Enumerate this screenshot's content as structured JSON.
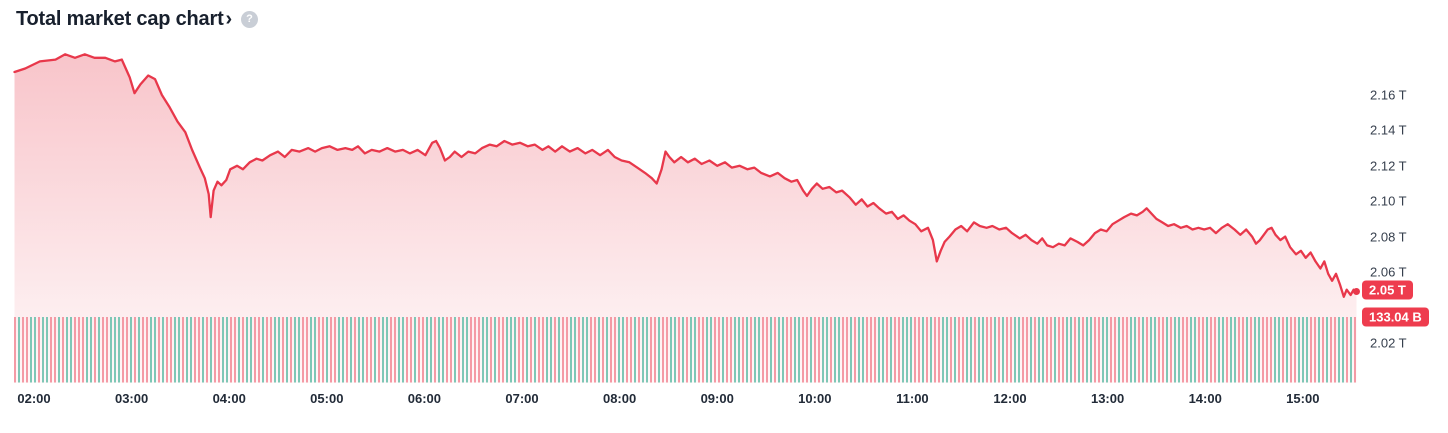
{
  "header": {
    "title": "Total market cap chart",
    "chevron": "›",
    "help_icon": "?"
  },
  "chart_data": {
    "type": "area",
    "title": "Total market cap chart",
    "grid": false,
    "legend": "none",
    "y_labels_side": "right",
    "x_axis": {
      "ticks": [
        {
          "hour": 2,
          "label": "02:00"
        },
        {
          "hour": 3,
          "label": "03:00"
        },
        {
          "hour": 4,
          "label": "04:00"
        },
        {
          "hour": 5,
          "label": "05:00"
        },
        {
          "hour": 6,
          "label": "06:00"
        },
        {
          "hour": 7,
          "label": "07:00"
        },
        {
          "hour": 8,
          "label": "08:00"
        },
        {
          "hour": 9,
          "label": "09:00"
        },
        {
          "hour": 10,
          "label": "10:00"
        },
        {
          "hour": 11,
          "label": "11:00"
        },
        {
          "hour": 12,
          "label": "12:00"
        },
        {
          "hour": 13,
          "label": "13:00"
        },
        {
          "hour": 14,
          "label": "14:00"
        },
        {
          "hour": 15,
          "label": "15:00"
        }
      ],
      "hours_range": [
        1.795,
        15.56
      ]
    },
    "y_axis": {
      "unit": "T",
      "ticks": [
        {
          "value": 2.16,
          "label": "2.16 T"
        },
        {
          "value": 2.14,
          "label": "2.14 T"
        },
        {
          "value": 2.12,
          "label": "2.12 T"
        },
        {
          "value": 2.1,
          "label": "2.10 T"
        },
        {
          "value": 2.08,
          "label": "2.08 T"
        },
        {
          "value": 2.06,
          "label": "2.06 T"
        },
        {
          "value": 2.02,
          "label": "2.02 T"
        }
      ],
      "view_range": [
        1.997,
        2.188
      ]
    },
    "current": {
      "market_cap_label": "2.05 T",
      "market_cap_value": 2.05,
      "volume_label": "133.04 B",
      "volume_value_billions": 133.04
    },
    "series": [
      {
        "name": "total_market_cap_trillions_usd",
        "points": [
          [
            1.8,
            2.173
          ],
          [
            1.91,
            2.175
          ],
          [
            2.06,
            2.179
          ],
          [
            2.22,
            2.18
          ],
          [
            2.32,
            2.183
          ],
          [
            2.42,
            2.181
          ],
          [
            2.52,
            2.183
          ],
          [
            2.62,
            2.181
          ],
          [
            2.73,
            2.181
          ],
          [
            2.83,
            2.179
          ],
          [
            2.9,
            2.18
          ],
          [
            2.98,
            2.17
          ],
          [
            3.03,
            2.161
          ],
          [
            3.09,
            2.166
          ],
          [
            3.17,
            2.171
          ],
          [
            3.24,
            2.169
          ],
          [
            3.31,
            2.16
          ],
          [
            3.39,
            2.153
          ],
          [
            3.47,
            2.145
          ],
          [
            3.55,
            2.139
          ],
          [
            3.62,
            2.129
          ],
          [
            3.7,
            2.119
          ],
          [
            3.75,
            2.113
          ],
          [
            3.79,
            2.104
          ],
          [
            3.81,
            2.091
          ],
          [
            3.84,
            2.106
          ],
          [
            3.88,
            2.111
          ],
          [
            3.92,
            2.109
          ],
          [
            3.97,
            2.112
          ],
          [
            4.01,
            2.118
          ],
          [
            4.08,
            2.12
          ],
          [
            4.14,
            2.118
          ],
          [
            4.21,
            2.122
          ],
          [
            4.28,
            2.124
          ],
          [
            4.34,
            2.123
          ],
          [
            4.42,
            2.126
          ],
          [
            4.5,
            2.128
          ],
          [
            4.57,
            2.125
          ],
          [
            4.64,
            2.129
          ],
          [
            4.72,
            2.128
          ],
          [
            4.81,
            2.13
          ],
          [
            4.88,
            2.128
          ],
          [
            4.95,
            2.13
          ],
          [
            5.03,
            2.131
          ],
          [
            5.11,
            2.129
          ],
          [
            5.19,
            2.13
          ],
          [
            5.26,
            2.129
          ],
          [
            5.32,
            2.131
          ],
          [
            5.39,
            2.127
          ],
          [
            5.46,
            2.129
          ],
          [
            5.54,
            2.128
          ],
          [
            5.62,
            2.13
          ],
          [
            5.7,
            2.128
          ],
          [
            5.78,
            2.129
          ],
          [
            5.85,
            2.127
          ],
          [
            5.93,
            2.129
          ],
          [
            6.01,
            2.126
          ],
          [
            6.08,
            2.133
          ],
          [
            6.12,
            2.134
          ],
          [
            6.16,
            2.13
          ],
          [
            6.21,
            2.123
          ],
          [
            6.26,
            2.125
          ],
          [
            6.31,
            2.128
          ],
          [
            6.38,
            2.125
          ],
          [
            6.45,
            2.128
          ],
          [
            6.52,
            2.127
          ],
          [
            6.59,
            2.13
          ],
          [
            6.67,
            2.132
          ],
          [
            6.74,
            2.131
          ],
          [
            6.82,
            2.134
          ],
          [
            6.9,
            2.132
          ],
          [
            6.98,
            2.133
          ],
          [
            7.06,
            2.131
          ],
          [
            7.13,
            2.132
          ],
          [
            7.21,
            2.129
          ],
          [
            7.27,
            2.131
          ],
          [
            7.34,
            2.128
          ],
          [
            7.41,
            2.131
          ],
          [
            7.49,
            2.128
          ],
          [
            7.57,
            2.13
          ],
          [
            7.65,
            2.127
          ],
          [
            7.72,
            2.129
          ],
          [
            7.8,
            2.126
          ],
          [
            7.88,
            2.129
          ],
          [
            7.95,
            2.125
          ],
          [
            8.02,
            2.123
          ],
          [
            8.1,
            2.122
          ],
          [
            8.18,
            2.119
          ],
          [
            8.26,
            2.116
          ],
          [
            8.33,
            2.113
          ],
          [
            8.38,
            2.11
          ],
          [
            8.43,
            2.118
          ],
          [
            8.47,
            2.128
          ],
          [
            8.51,
            2.125
          ],
          [
            8.56,
            2.122
          ],
          [
            8.63,
            2.125
          ],
          [
            8.7,
            2.122
          ],
          [
            8.77,
            2.124
          ],
          [
            8.84,
            2.121
          ],
          [
            8.92,
            2.123
          ],
          [
            9.0,
            2.12
          ],
          [
            9.08,
            2.122
          ],
          [
            9.15,
            2.119
          ],
          [
            9.23,
            2.12
          ],
          [
            9.31,
            2.118
          ],
          [
            9.38,
            2.119
          ],
          [
            9.45,
            2.116
          ],
          [
            9.54,
            2.114
          ],
          [
            9.62,
            2.116
          ],
          [
            9.69,
            2.113
          ],
          [
            9.76,
            2.111
          ],
          [
            9.82,
            2.112
          ],
          [
            9.88,
            2.106
          ],
          [
            9.92,
            2.103
          ],
          [
            9.97,
            2.107
          ],
          [
            10.02,
            2.11
          ],
          [
            10.08,
            2.107
          ],
          [
            10.15,
            2.108
          ],
          [
            10.22,
            2.105
          ],
          [
            10.28,
            2.106
          ],
          [
            10.36,
            2.102
          ],
          [
            10.42,
            2.098
          ],
          [
            10.48,
            2.101
          ],
          [
            10.54,
            2.097
          ],
          [
            10.6,
            2.099
          ],
          [
            10.66,
            2.096
          ],
          [
            10.73,
            2.093
          ],
          [
            10.79,
            2.094
          ],
          [
            10.85,
            2.09
          ],
          [
            10.91,
            2.092
          ],
          [
            10.97,
            2.089
          ],
          [
            11.03,
            2.087
          ],
          [
            11.09,
            2.083
          ],
          [
            11.16,
            2.085
          ],
          [
            11.21,
            2.078
          ],
          [
            11.25,
            2.066
          ],
          [
            11.29,
            2.072
          ],
          [
            11.33,
            2.077
          ],
          [
            11.38,
            2.08
          ],
          [
            11.44,
            2.084
          ],
          [
            11.5,
            2.086
          ],
          [
            11.56,
            2.083
          ],
          [
            11.63,
            2.088
          ],
          [
            11.69,
            2.086
          ],
          [
            11.76,
            2.085
          ],
          [
            11.82,
            2.086
          ],
          [
            11.89,
            2.084
          ],
          [
            11.96,
            2.085
          ],
          [
            12.02,
            2.082
          ],
          [
            12.1,
            2.079
          ],
          [
            12.16,
            2.081
          ],
          [
            12.22,
            2.078
          ],
          [
            12.28,
            2.076
          ],
          [
            12.33,
            2.079
          ],
          [
            12.38,
            2.075
          ],
          [
            12.44,
            2.074
          ],
          [
            12.5,
            2.076
          ],
          [
            12.56,
            2.075
          ],
          [
            12.62,
            2.079
          ],
          [
            12.69,
            2.077
          ],
          [
            12.75,
            2.075
          ],
          [
            12.81,
            2.078
          ],
          [
            12.87,
            2.082
          ],
          [
            12.93,
            2.084
          ],
          [
            12.99,
            2.083
          ],
          [
            13.05,
            2.087
          ],
          [
            13.11,
            2.089
          ],
          [
            13.17,
            2.091
          ],
          [
            13.24,
            2.093
          ],
          [
            13.3,
            2.092
          ],
          [
            13.36,
            2.094
          ],
          [
            13.4,
            2.096
          ],
          [
            13.45,
            2.093
          ],
          [
            13.5,
            2.09
          ],
          [
            13.56,
            2.088
          ],
          [
            13.62,
            2.086
          ],
          [
            13.68,
            2.087
          ],
          [
            13.75,
            2.085
          ],
          [
            13.81,
            2.086
          ],
          [
            13.87,
            2.084
          ],
          [
            13.93,
            2.085
          ],
          [
            13.99,
            2.084
          ],
          [
            14.05,
            2.085
          ],
          [
            14.11,
            2.082
          ],
          [
            14.17,
            2.085
          ],
          [
            14.23,
            2.087
          ],
          [
            14.3,
            2.084
          ],
          [
            14.36,
            2.081
          ],
          [
            14.42,
            2.084
          ],
          [
            14.48,
            2.08
          ],
          [
            14.52,
            2.076
          ],
          [
            14.56,
            2.078
          ],
          [
            14.6,
            2.081
          ],
          [
            14.64,
            2.084
          ],
          [
            14.68,
            2.085
          ],
          [
            14.72,
            2.081
          ],
          [
            14.77,
            2.078
          ],
          [
            14.82,
            2.08
          ],
          [
            14.87,
            2.074
          ],
          [
            14.93,
            2.07
          ],
          [
            14.98,
            2.072
          ],
          [
            15.03,
            2.068
          ],
          [
            15.08,
            2.071
          ],
          [
            15.13,
            2.066
          ],
          [
            15.18,
            2.062
          ],
          [
            15.22,
            2.066
          ],
          [
            15.26,
            2.059
          ],
          [
            15.3,
            2.055
          ],
          [
            15.34,
            2.059
          ],
          [
            15.38,
            2.053
          ],
          [
            15.42,
            2.046
          ],
          [
            15.45,
            2.05
          ],
          [
            15.49,
            2.047
          ],
          [
            15.52,
            2.05
          ],
          [
            15.55,
            2.049
          ]
        ]
      }
    ],
    "volume_strip": {
      "up_color": "#7ec7b6",
      "down_color": "#f49aa5",
      "pattern": "RTRRTTRTTRRTRTTRRRTTRTRRTTTRRTRTRRTTRTRRTTRTTRRTRTRRTTRRTRTTRRTRRTTRTRTTRRTTRRTRRTTRTRTTRRTRTTRRTTR"
    },
    "colors": {
      "line": "#e8384b",
      "fill_top": "rgba(232,56,75,0.30)",
      "fill_bottom": "rgba(232,56,75,0.03)",
      "badge_bg": "#ee3c4e",
      "badge_text": "#ffffff",
      "title_text": "#18202d",
      "x_tick_text": "#222b38",
      "y_tick_text": "#363f4d",
      "help_icon_bg": "#c9ced6"
    }
  }
}
